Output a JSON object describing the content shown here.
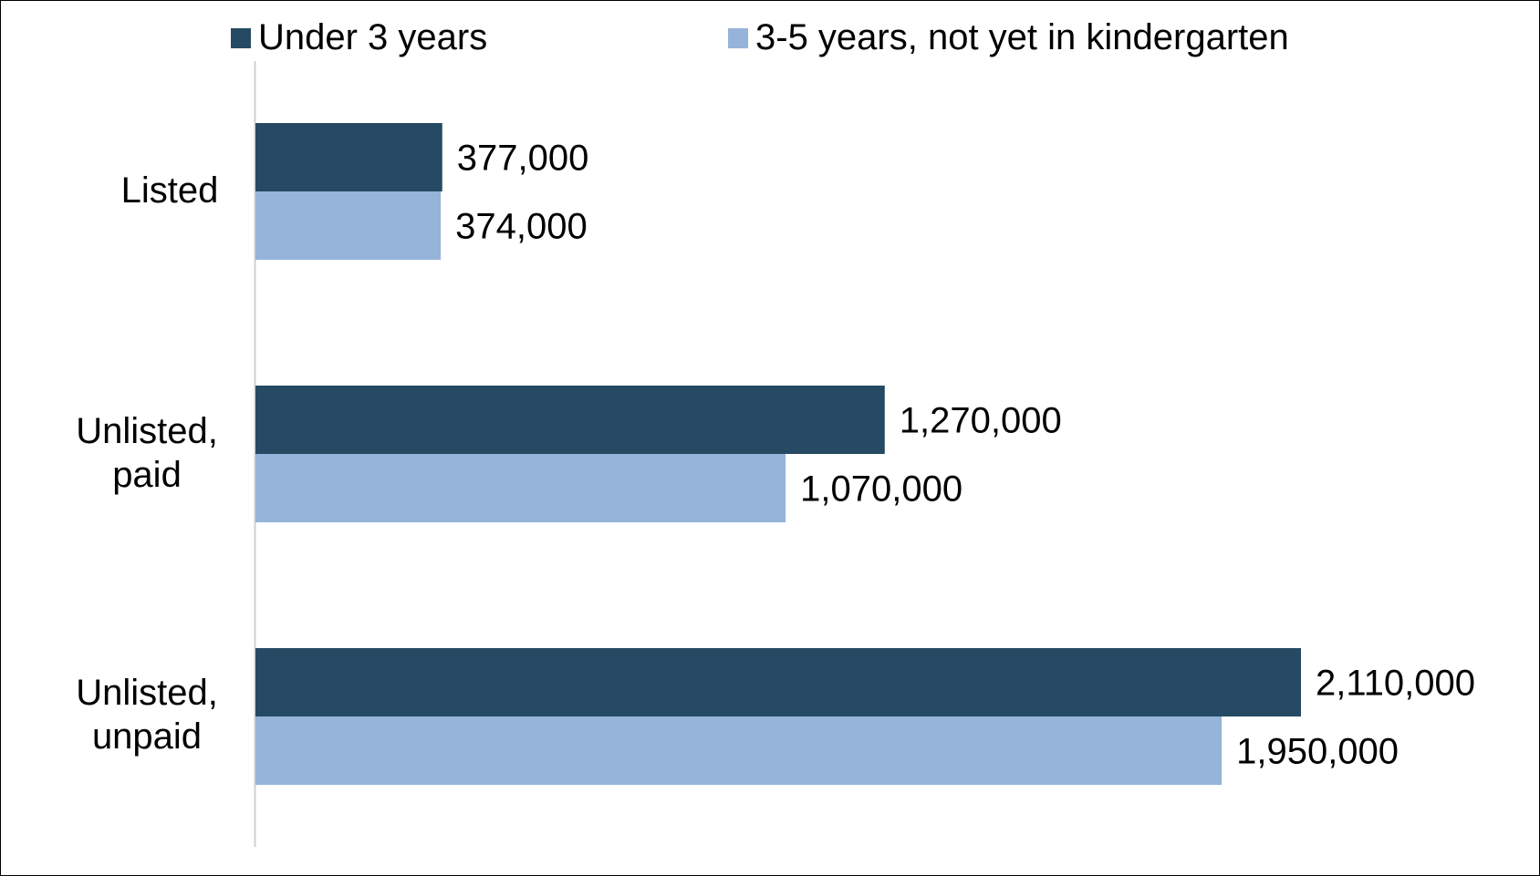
{
  "chart_data": {
    "type": "bar",
    "orientation": "horizontal",
    "categories": [
      "Listed",
      "Unlisted, paid",
      "Unlisted, unpaid"
    ],
    "category_lines": [
      [
        "Listed"
      ],
      [
        "Unlisted,",
        "paid"
      ],
      [
        "Unlisted,",
        "unpaid"
      ]
    ],
    "series": [
      {
        "name": "Under 3 years",
        "color": "#264a63",
        "values": [
          377000,
          1270000,
          2110000
        ],
        "labels": [
          "377,000",
          "1,270,000",
          "2,110,000"
        ]
      },
      {
        "name": "3-5 years, not yet in kindergarten",
        "color": "#96b4d9",
        "values": [
          374000,
          1070000,
          1950000
        ],
        "labels": [
          "374,000",
          "1,070,000",
          "1,950,000"
        ]
      }
    ],
    "xlim": [
      0,
      2600000
    ],
    "grid": false,
    "legend_position": "top",
    "title": "",
    "xlabel": "",
    "ylabel": ""
  }
}
